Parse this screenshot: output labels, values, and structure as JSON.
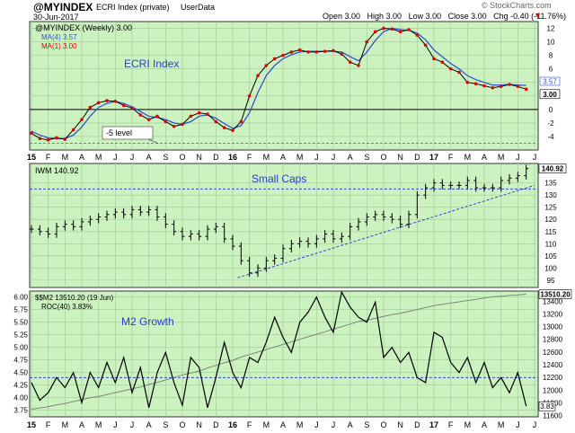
{
  "header": {
    "symbol": "@MYINDEX",
    "name": "ECRI Index (private)",
    "source": "UserData",
    "date": "30-Jun-2017",
    "quote": "Open 3.00   High 3.00   Low 3.00   Close 3.00   Chg -0.40 (-11.76%)",
    "down_glyph": "▼",
    "brand": "© StockCharts.com"
  },
  "colors": {
    "panel_bg": "#ccf2c0",
    "grid": "#9ec99a",
    "black": "#000000",
    "blue": "#3355cc",
    "red": "#dd0000",
    "gray": "#7a8a7a",
    "dashed": "#3344dd",
    "label_blue": "#2a3fc9"
  },
  "x_months": {
    "labels": [
      "15",
      "F",
      "M",
      "A",
      "M",
      "J",
      "J",
      "A",
      "S",
      "O",
      "N",
      "D",
      "16",
      "F",
      "M",
      "A",
      "M",
      "J",
      "J",
      "A",
      "S",
      "O",
      "N",
      "D",
      "17",
      "F",
      "M",
      "A",
      "M",
      "J",
      "J"
    ],
    "bold": [
      "15",
      "16",
      "17"
    ]
  },
  "chart_data": [
    {
      "type": "line",
      "panel": "ecri",
      "legend": [
        "@MYINDEX (Weekly) 3.00",
        "MA(4) 3.57",
        "MA(1) 3.00"
      ],
      "annotation_title": "ECRI Index",
      "annotation_note": "-5 level",
      "last_value_labels": [
        "3.57",
        "3.00"
      ],
      "ylim": [
        -6,
        13
      ],
      "yticks": [
        -4,
        -2,
        0,
        2,
        4,
        6,
        8,
        10,
        12
      ],
      "reference_lines": [
        0,
        -5
      ],
      "x": [
        0,
        0.5,
        1,
        1.5,
        2,
        2.5,
        3,
        3.5,
        4,
        4.5,
        5,
        5.5,
        6,
        6.5,
        7,
        7.5,
        8,
        8.5,
        9,
        9.5,
        10,
        10.5,
        11,
        11.5,
        12,
        12.5,
        13,
        13.5,
        14,
        14.5,
        15,
        15.5,
        16,
        16.5,
        17,
        17.5,
        18,
        18.5,
        19,
        19.5,
        20,
        20.5,
        21,
        21.5,
        22,
        22.5,
        23,
        23.5,
        24,
        24.5,
        25,
        25.5,
        26,
        26.5,
        27,
        27.5,
        28,
        28.5,
        29,
        29.5
      ],
      "series": [
        {
          "name": "@MYINDEX (Weekly) 3.00",
          "values": [
            -3.5,
            -4.3,
            -4.5,
            -4.2,
            -4.4,
            -3,
            -1.5,
            0.3,
            1,
            1.3,
            1.2,
            0.6,
            0.2,
            -0.8,
            -1.5,
            -1,
            -1.8,
            -2.5,
            -2.2,
            -1,
            -0.5,
            -0.7,
            -1.8,
            -2.7,
            -3.1,
            -1.8,
            2,
            5,
            6.5,
            7.5,
            8,
            8.5,
            8.8,
            8.5,
            8.5,
            8.6,
            8.7,
            8.2,
            7,
            6.5,
            10,
            11.5,
            12,
            11.9,
            11.5,
            11.8,
            11,
            9.5,
            7.5,
            7,
            6,
            5.5,
            4,
            3.8,
            3.5,
            3.2,
            3.4,
            3.7,
            3.4,
            3
          ]
        },
        {
          "name": "MA(4) 3.57",
          "values": [
            -3.2,
            -3.8,
            -4.2,
            -4.3,
            -4.3,
            -3.8,
            -2.6,
            -1,
            0.3,
            0.9,
            1.2,
            0.9,
            0.4,
            -0.3,
            -1,
            -1.2,
            -1.5,
            -2,
            -2.2,
            -1.8,
            -1,
            -0.8,
            -1.3,
            -2.1,
            -2.8,
            -2.4,
            -0.5,
            2.5,
            5,
            6.5,
            7.5,
            8.1,
            8.5,
            8.6,
            8.6,
            8.6,
            8.6,
            8.5,
            7.8,
            7.2,
            8.5,
            10.2,
            11.5,
            12,
            11.8,
            11.7,
            11.3,
            10.3,
            8.8,
            7.8,
            6.8,
            6,
            5,
            4.4,
            4,
            3.6,
            3.6,
            3.7,
            3.6,
            3.57
          ]
        }
      ]
    },
    {
      "type": "ohlc",
      "panel": "iwm",
      "legend": "IWM 140.92",
      "annotation_title": "Small Caps",
      "last_value_label": "140.92",
      "ylim": [
        92,
        143
      ],
      "yticks": [
        95,
        100,
        105,
        110,
        115,
        120,
        125,
        130,
        135
      ],
      "x": [
        0,
        0.5,
        1,
        1.5,
        2,
        2.5,
        3,
        3.5,
        4,
        4.5,
        5,
        5.5,
        6,
        6.5,
        7,
        7.5,
        8,
        8.5,
        9,
        9.5,
        10,
        10.5,
        11,
        11.5,
        12,
        12.5,
        13,
        13.5,
        14,
        14.5,
        15,
        15.5,
        16,
        16.5,
        17,
        17.5,
        18,
        18.5,
        19,
        19.5,
        20,
        20.5,
        21,
        21.5,
        22,
        22.5,
        23,
        23.5,
        24,
        24.5,
        25,
        25.5,
        26,
        26.5,
        27,
        27.5,
        28,
        28.5,
        29,
        29.5
      ],
      "close": [
        116,
        115,
        114,
        117,
        118,
        117,
        119,
        120,
        121,
        122,
        123,
        122,
        124,
        123,
        124,
        121,
        118,
        115,
        113,
        114,
        113,
        116,
        117,
        112,
        109,
        103,
        98,
        100,
        103,
        104,
        108,
        110,
        111,
        110,
        112,
        114,
        112,
        113,
        117,
        119,
        121,
        122,
        121,
        120,
        118,
        122,
        130,
        133,
        135,
        134,
        134,
        134,
        136,
        133,
        133,
        133,
        136,
        137,
        138,
        140.9
      ],
      "reference_lines": [
        {
          "type": "horizontal",
          "value": 132.5
        },
        {
          "type": "trend",
          "from": [
            12.3,
            96
          ],
          "to": [
            30,
            134
          ]
        }
      ]
    },
    {
      "type": "line",
      "panel": "m2",
      "legend": [
        "$$M2 13510.20 (19 Jun)",
        "ROC(40) 3.83%"
      ],
      "annotation_title": "M2 Growth",
      "last_value_labels": [
        "13510.20",
        "3.83"
      ],
      "ylim_left": [
        3.62,
        6.12
      ],
      "yticks_left": [
        "3.75",
        "4.00",
        "4.25",
        "4.50",
        "4.75",
        "5.00",
        "5.25",
        "5.50",
        "5.75",
        "6.00"
      ],
      "ylim_right": [
        11580,
        13560
      ],
      "yticks_right": [
        "11600",
        "11800",
        "12000",
        "12200",
        "12400",
        "12600",
        "12800",
        "13000",
        "13200",
        "13400"
      ],
      "reference_line_left": 4.4,
      "x": [
        0,
        0.5,
        1,
        1.5,
        2,
        2.5,
        3,
        3.5,
        4,
        4.5,
        5,
        5.5,
        6,
        6.5,
        7,
        7.5,
        8,
        8.5,
        9,
        9.5,
        10,
        10.5,
        11,
        11.5,
        12,
        12.5,
        13,
        13.5,
        14,
        14.5,
        15,
        15.5,
        16,
        16.5,
        17,
        17.5,
        18,
        18.5,
        19,
        19.5,
        20,
        20.5,
        21,
        21.5,
        22,
        22.5,
        23,
        23.5,
        24,
        24.5,
        25,
        25.5,
        26,
        26.5,
        27,
        27.5,
        28,
        28.5,
        29,
        29.5
      ],
      "series": [
        {
          "name": "ROC(40) 3.83%",
          "axis": "left",
          "values": [
            4.3,
            3.95,
            4.1,
            4.4,
            4.2,
            4.5,
            3.9,
            4.5,
            4.2,
            4.7,
            4.3,
            4.8,
            4.1,
            4.6,
            3.8,
            4.5,
            4.9,
            4.3,
            3.85,
            4.8,
            4.6,
            3.8,
            4.4,
            5.1,
            4.5,
            4.2,
            4.8,
            4.7,
            5.1,
            5.6,
            5.2,
            4.9,
            5.5,
            5.7,
            6,
            5.6,
            5.3,
            6.1,
            5.8,
            5.6,
            5.5,
            5.9,
            4.8,
            5,
            4.7,
            4.9,
            4.4,
            4.3,
            5.3,
            5.2,
            4.7,
            4.5,
            4.8,
            4.3,
            4.7,
            4.2,
            4.4,
            4.1,
            4.5,
            3.83
          ]
        },
        {
          "name": "$$M2 13510.20 (19 Jun)",
          "axis": "right",
          "values": [
            11700,
            11720,
            11740,
            11770,
            11790,
            11820,
            11850,
            11880,
            11900,
            11930,
            11960,
            11990,
            12020,
            12050,
            12090,
            12120,
            12160,
            12200,
            12240,
            12270,
            12300,
            12350,
            12390,
            12430,
            12470,
            12520,
            12560,
            12600,
            12640,
            12680,
            12720,
            12760,
            12800,
            12840,
            12880,
            12920,
            12960,
            13000,
            13040,
            13080,
            13100,
            13130,
            13160,
            13190,
            13210,
            13240,
            13270,
            13300,
            13330,
            13350,
            13370,
            13390,
            13410,
            13430,
            13450,
            13470,
            13480,
            13490,
            13500,
            13510
          ]
        }
      ]
    }
  ]
}
